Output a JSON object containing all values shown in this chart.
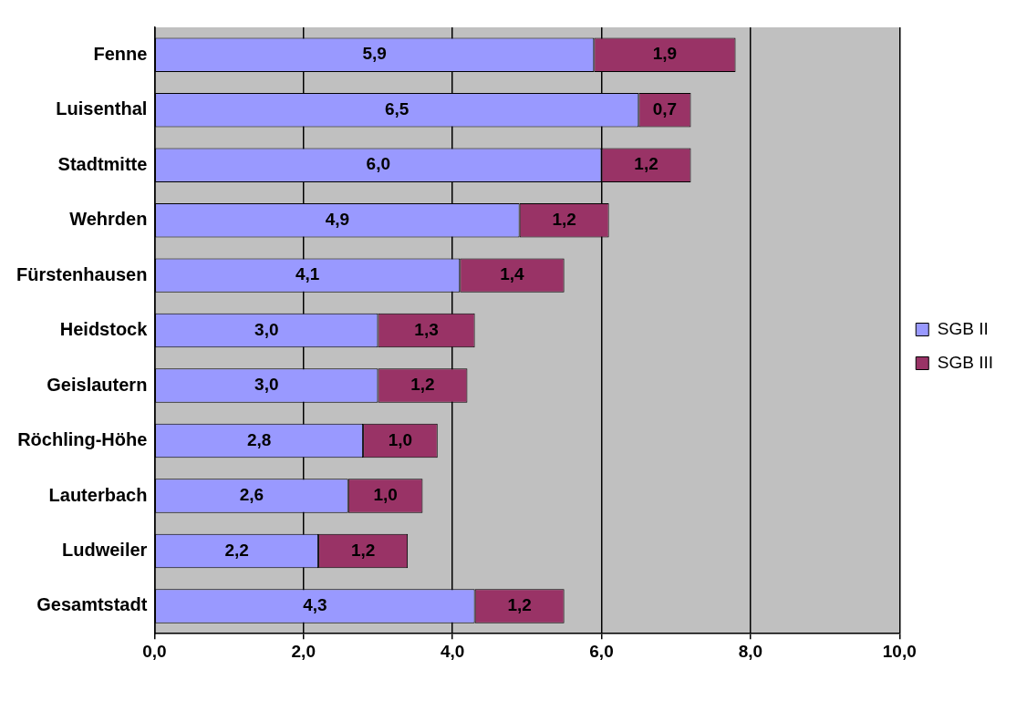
{
  "chart_data": {
    "type": "bar",
    "orientation": "horizontal",
    "stacked": true,
    "categories": [
      "Fenne",
      "Luisenthal",
      "Stadtmitte",
      "Wehrden",
      "Fürstenhausen",
      "Heidstock",
      "Geislautern",
      "Röchling-Höhe",
      "Lauterbach",
      "Ludweiler",
      "Gesamtstadt"
    ],
    "series": [
      {
        "name": "SGB II",
        "color": "#9999ff",
        "values": [
          5.9,
          6.5,
          6.0,
          4.9,
          4.1,
          3.0,
          3.0,
          2.8,
          2.6,
          2.2,
          4.3
        ],
        "value_labels": [
          "5,9",
          "6,5",
          "6,0",
          "4,9",
          "4,1",
          "3,0",
          "3,0",
          "2,8",
          "2,6",
          "2,2",
          "4,3"
        ]
      },
      {
        "name": "SGB III",
        "color": "#993366",
        "values": [
          1.9,
          0.7,
          1.2,
          1.2,
          1.4,
          1.3,
          1.2,
          1.0,
          1.0,
          1.2,
          1.2
        ],
        "value_labels": [
          "1,9",
          "0,7",
          "1,2",
          "1,2",
          "1,4",
          "1,3",
          "1,2",
          "1,0",
          "1,0",
          "1,2",
          "1,2"
        ]
      }
    ],
    "xlim": [
      0,
      10
    ],
    "xticks": [
      {
        "value": 0,
        "label": "0,0"
      },
      {
        "value": 2,
        "label": "2,0"
      },
      {
        "value": 4,
        "label": "4,0"
      },
      {
        "value": 6,
        "label": "6,0"
      },
      {
        "value": 8,
        "label": "8,0"
      },
      {
        "value": 10,
        "label": "10,0"
      }
    ],
    "grid": "x",
    "legend": "right"
  }
}
